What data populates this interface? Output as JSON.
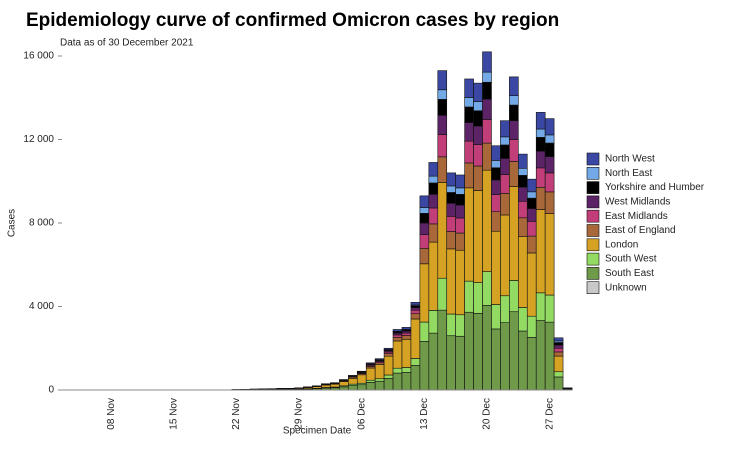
{
  "chart_data": {
    "type": "stacked-bar",
    "title": "Epidemiology curve of confirmed Omicron cases by region",
    "subtitle": "Data as of 30 December 2021",
    "y_label": "Cases",
    "x_label": "Specimen Date",
    "categories": [
      null,
      null,
      null,
      null,
      null,
      "08 Nov",
      null,
      null,
      null,
      null,
      null,
      null,
      "15 Nov",
      null,
      null,
      null,
      null,
      null,
      null,
      "22 Nov",
      null,
      null,
      null,
      null,
      null,
      null,
      "29 Nov",
      null,
      null,
      null,
      null,
      null,
      null,
      "06 Dec",
      null,
      null,
      null,
      null,
      null,
      null,
      "13 Dec",
      null,
      null,
      null,
      null,
      null,
      null,
      "20 Dec",
      null,
      null,
      null,
      null,
      null,
      null,
      "27 Dec",
      null,
      null
    ],
    "ylim": [
      0,
      16000
    ],
    "yticks": [
      0,
      {
        "value": 4000,
        "label": "4 000"
      },
      {
        "value": 8000,
        "label": "8 000"
      },
      {
        "value": 12000,
        "label": "12 000"
      },
      {
        "value": 16000,
        "label": "16 000"
      }
    ],
    "legend": "right",
    "series": [
      {
        "name": "North West",
        "color": "#3b48a3",
        "values": [
          0,
          0,
          0,
          0,
          0,
          0,
          0,
          0,
          0,
          0,
          0,
          0,
          0,
          0,
          0,
          0,
          0,
          0,
          0,
          0,
          1,
          1,
          1,
          1,
          1,
          2,
          2,
          3,
          4,
          6,
          7,
          10,
          14,
          27,
          39,
          45,
          60,
          87,
          90,
          126,
          558,
          654,
          918,
          624,
          618,
          894,
          882,
          972,
          702,
          774,
          900,
          678,
          606,
          798,
          780,
          150,
          6
        ]
      },
      {
        "name": "North East",
        "color": "#72a9e6",
        "values": [
          0,
          0,
          0,
          0,
          0,
          0,
          0,
          0,
          0,
          0,
          0,
          0,
          0,
          0,
          0,
          0,
          0,
          0,
          0,
          0,
          0,
          0,
          0,
          1,
          1,
          1,
          1,
          1,
          2,
          3,
          3,
          5,
          7,
          9,
          13,
          15,
          20,
          29,
          30,
          42,
          279,
          327,
          459,
          312,
          309,
          447,
          441,
          486,
          351,
          387,
          450,
          339,
          303,
          399,
          390,
          75,
          3
        ]
      },
      {
        "name": "Yorkshire and Humber",
        "color": "#000000",
        "values": [
          0,
          0,
          0,
          0,
          0,
          0,
          0,
          0,
          0,
          0,
          0,
          0,
          0,
          0,
          0,
          0,
          0,
          0,
          0,
          0,
          1,
          1,
          1,
          1,
          1,
          2,
          2,
          3,
          4,
          6,
          7,
          10,
          14,
          18,
          26,
          30,
          40,
          58,
          60,
          84,
          465,
          545,
          765,
          520,
          515,
          745,
          735,
          810,
          585,
          645,
          750,
          565,
          505,
          665,
          650,
          125,
          5
        ]
      },
      {
        "name": "West Midlands",
        "color": "#5c2366",
        "values": [
          0,
          0,
          0,
          0,
          0,
          0,
          0,
          0,
          0,
          0,
          0,
          0,
          0,
          0,
          0,
          0,
          0,
          0,
          0,
          1,
          1,
          1,
          2,
          2,
          2,
          2,
          3,
          5,
          6,
          9,
          11,
          15,
          21,
          27,
          39,
          45,
          60,
          87,
          90,
          126,
          558,
          654,
          918,
          624,
          618,
          894,
          882,
          972,
          702,
          774,
          900,
          678,
          606,
          798,
          780,
          150,
          6
        ]
      },
      {
        "name": "East Midlands",
        "color": "#c23e78",
        "values": [
          0,
          0,
          0,
          0,
          0,
          0,
          0,
          0,
          0,
          0,
          0,
          0,
          0,
          0,
          0,
          0,
          0,
          0,
          0,
          1,
          1,
          2,
          2,
          2,
          3,
          3,
          4,
          6,
          8,
          12,
          14,
          20,
          28,
          36,
          52,
          60,
          80,
          116,
          120,
          168,
          651,
          763,
          1071,
          728,
          721,
          1043,
          1029,
          1134,
          819,
          903,
          1050,
          791,
          707,
          931,
          910,
          175,
          7
        ]
      },
      {
        "name": "East of England",
        "color": "#a8683a",
        "values": [
          0,
          0,
          0,
          0,
          0,
          0,
          0,
          0,
          0,
          0,
          0,
          0,
          0,
          0,
          0,
          0,
          0,
          0,
          0,
          2,
          2,
          3,
          4,
          5,
          6,
          6,
          8,
          12,
          16,
          24,
          28,
          40,
          56,
          54,
          78,
          90,
          120,
          174,
          180,
          252,
          744,
          872,
          1224,
          832,
          824,
          1192,
          1176,
          1296,
          936,
          1032,
          1200,
          904,
          808,
          1064,
          1040,
          200,
          8
        ]
      },
      {
        "name": "London",
        "color": "#d6a224",
        "values": [
          0,
          0,
          0,
          0,
          0,
          0,
          0,
          0,
          0,
          0,
          0,
          0,
          0,
          0,
          0,
          0,
          0,
          0,
          0,
          8,
          12,
          16,
          20,
          24,
          28,
          32,
          40,
          60,
          80,
          120,
          140,
          200,
          280,
          405,
          585,
          675,
          900,
          1305,
          1350,
          1890,
          2790,
          3270,
          4590,
          3120,
          3090,
          4470,
          4410,
          4860,
          3510,
          3870,
          4500,
          3390,
          3030,
          3990,
          3900,
          750,
          30
        ]
      },
      {
        "name": "South West",
        "color": "#93da62",
        "values": [
          0,
          0,
          0,
          0,
          0,
          0,
          0,
          0,
          0,
          0,
          0,
          0,
          0,
          0,
          0,
          0,
          0,
          0,
          0,
          2,
          3,
          4,
          5,
          6,
          7,
          8,
          10,
          15,
          20,
          30,
          35,
          50,
          70,
          72,
          104,
          120,
          160,
          232,
          240,
          336,
          930,
          1090,
          1530,
          1040,
          1030,
          1490,
          1470,
          1620,
          1170,
          1290,
          1500,
          1130,
          1010,
          1330,
          1300,
          250,
          10
        ]
      },
      {
        "name": "South East",
        "color": "#6f9a49",
        "values": [
          0,
          0,
          0,
          0,
          0,
          0,
          0,
          0,
          0,
          0,
          0,
          0,
          0,
          0,
          0,
          0,
          0,
          0,
          0,
          6,
          9,
          12,
          15,
          18,
          21,
          24,
          30,
          45,
          60,
          90,
          105,
          150,
          210,
          252,
          364,
          420,
          560,
          812,
          840,
          1176,
          2325,
          2725,
          3825,
          2600,
          2575,
          3725,
          3675,
          4050,
          2925,
          3225,
          3750,
          2825,
          2525,
          3325,
          3250,
          625,
          25
        ]
      },
      {
        "name": "Unknown",
        "color": "#c8c8c8",
        "values": [
          0,
          0,
          0,
          0,
          0,
          0,
          0,
          0,
          0,
          0,
          0,
          0,
          0,
          0,
          0,
          0,
          0,
          0,
          0,
          0,
          0,
          0,
          0,
          0,
          0,
          0,
          0,
          0,
          0,
          0,
          0,
          0,
          0,
          0,
          0,
          0,
          0,
          0,
          0,
          0,
          0,
          0,
          0,
          0,
          0,
          0,
          0,
          0,
          0,
          0,
          0,
          0,
          0,
          0,
          0,
          0,
          0
        ]
      }
    ]
  }
}
